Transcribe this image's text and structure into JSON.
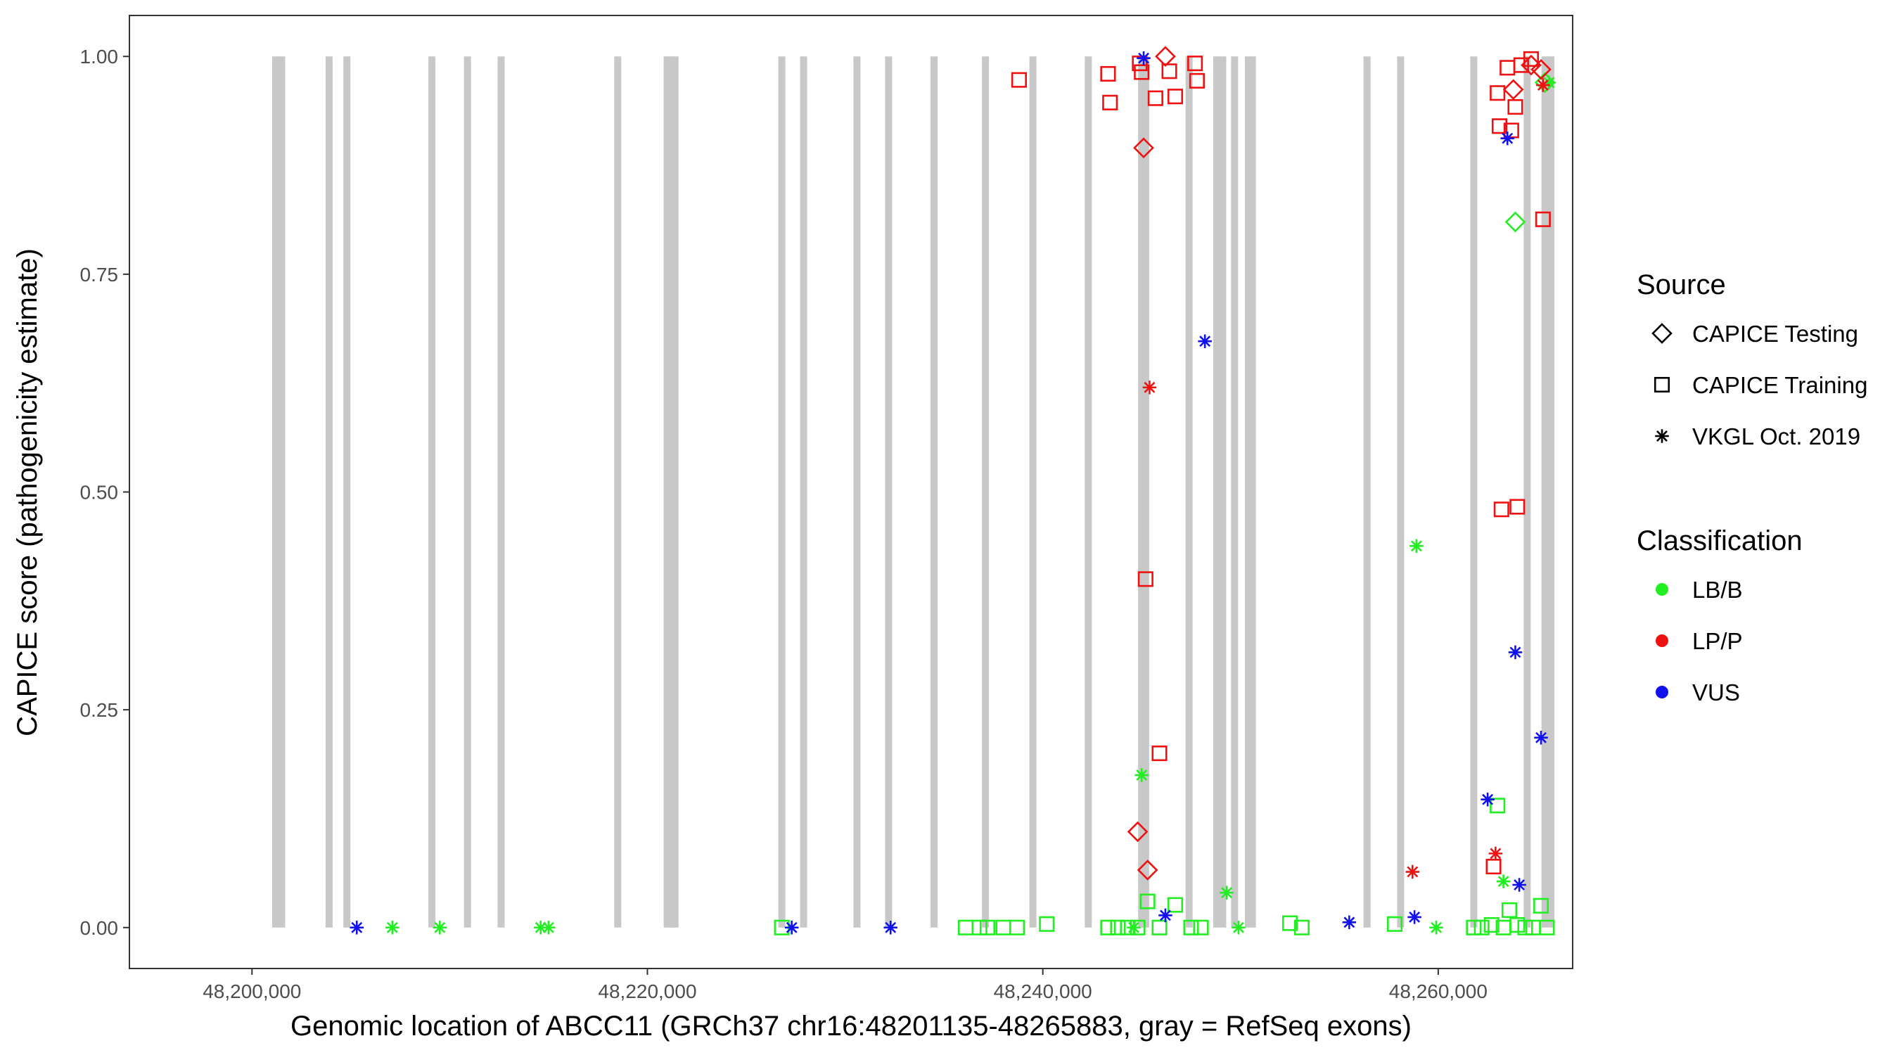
{
  "chart_data": {
    "type": "scatter",
    "title": "",
    "xlabel": "Genomic location of ABCC11 (GRCh37 chr16:48201135-48265883, gray = RefSeq exons)",
    "ylabel": "CAPICE score (pathogenicity estimate)",
    "xlim": [
      48193800,
      48266800
    ],
    "ylim": [
      -0.047,
      1.047
    ],
    "x_ticks": [
      48200000,
      48220000,
      48240000,
      48260000
    ],
    "x_tick_labels": [
      "48,200,000",
      "48,220,000",
      "48,240,000",
      "48,260,000"
    ],
    "y_ticks": [
      0,
      0.25,
      0.5,
      0.75,
      1.0
    ],
    "y_tick_labels": [
      "0.00",
      "0.25",
      "0.50",
      "0.75",
      "1.00"
    ],
    "grid": false,
    "legend_position": "right",
    "exons": [
      48201200,
      48201500,
      48203900,
      48204800,
      48209100,
      48210900,
      48212600,
      48218500,
      48221000,
      48221200,
      48221400,
      48226800,
      48227900,
      48230600,
      48232200,
      48234500,
      48237100,
      48239500,
      48242300,
      48245000,
      48245200,
      48247400,
      48248800,
      48249100,
      48249700,
      48250400,
      48250600,
      48256400,
      48258100,
      48261800,
      48264500,
      48265400,
      48265700
    ],
    "legends": {
      "source": {
        "title": "Source",
        "items": [
          {
            "label": "CAPICE Testing",
            "shape": "diamond"
          },
          {
            "label": "CAPICE Training",
            "shape": "square"
          },
          {
            "label": "VKGL Oct. 2019",
            "shape": "asterisk"
          }
        ]
      },
      "classification": {
        "title": "Classification",
        "items": [
          {
            "label": "LB/B",
            "color": "#22ee22"
          },
          {
            "label": "LP/P",
            "color": "#ee1111"
          },
          {
            "label": "VUS",
            "color": "#1111ee"
          }
        ]
      }
    },
    "series": [
      {
        "source": "CAPICE Testing",
        "classification": "LB/B",
        "points": [
          [
            48263900,
            0.81
          ],
          [
            48265400,
            0.97
          ]
        ]
      },
      {
        "source": "CAPICE Testing",
        "classification": "LP/P",
        "points": [
          [
            48244800,
            0.11
          ],
          [
            48245100,
            0.895
          ],
          [
            48245300,
            0.066
          ],
          [
            48246200,
            1.0
          ],
          [
            48263800,
            0.962
          ],
          [
            48264700,
            0.99
          ],
          [
            48265200,
            0.985
          ]
        ]
      },
      {
        "source": "CAPICE Training",
        "classification": "LB/B",
        "points": [
          [
            48226800,
            0.0
          ],
          [
            48236100,
            0.0
          ],
          [
            48236800,
            0.0
          ],
          [
            48237200,
            0.0
          ],
          [
            48238000,
            0.0
          ],
          [
            48238700,
            0.0
          ],
          [
            48240200,
            0.004
          ],
          [
            48243300,
            0.0
          ],
          [
            48243800,
            0.0
          ],
          [
            48244300,
            0.0
          ],
          [
            48244800,
            0.0
          ],
          [
            48245300,
            0.03
          ],
          [
            48245900,
            0.0
          ],
          [
            48246700,
            0.026
          ],
          [
            48247500,
            0.0
          ],
          [
            48248000,
            0.0
          ],
          [
            48252500,
            0.005
          ],
          [
            48253100,
            0.0
          ],
          [
            48257800,
            0.004
          ],
          [
            48261800,
            0.0
          ],
          [
            48262200,
            0.0
          ],
          [
            48262700,
            0.003
          ],
          [
            48263000,
            0.14
          ],
          [
            48263300,
            0.0
          ],
          [
            48263600,
            0.02
          ],
          [
            48264000,
            0.003
          ],
          [
            48264400,
            0.0
          ],
          [
            48264800,
            0.0
          ],
          [
            48265200,
            0.025
          ],
          [
            48265500,
            0.0
          ]
        ]
      },
      {
        "source": "CAPICE Training",
        "classification": "LP/P",
        "points": [
          [
            48238800,
            0.973
          ],
          [
            48243300,
            0.98
          ],
          [
            48243400,
            0.947
          ],
          [
            48244900,
            0.992
          ],
          [
            48245000,
            0.982
          ],
          [
            48245200,
            0.4
          ],
          [
            48245700,
            0.952
          ],
          [
            48245900,
            0.2
          ],
          [
            48246400,
            0.983
          ],
          [
            48246700,
            0.954
          ],
          [
            48247700,
            0.992
          ],
          [
            48247800,
            0.972
          ],
          [
            48262800,
            0.07
          ],
          [
            48263000,
            0.958
          ],
          [
            48263100,
            0.92
          ],
          [
            48263200,
            0.48
          ],
          [
            48263500,
            0.987
          ],
          [
            48263700,
            0.915
          ],
          [
            48263900,
            0.942
          ],
          [
            48264000,
            0.483
          ],
          [
            48264200,
            0.99
          ],
          [
            48264700,
            0.997
          ],
          [
            48265300,
            0.813
          ]
        ]
      },
      {
        "source": "VKGL Oct. 2019",
        "classification": "LB/B",
        "points": [
          [
            48207100,
            0.0
          ],
          [
            48209500,
            0.0
          ],
          [
            48214600,
            0.0
          ],
          [
            48215000,
            0.0
          ],
          [
            48244600,
            0.0
          ],
          [
            48245000,
            0.175
          ],
          [
            48249300,
            0.04
          ],
          [
            48249900,
            0.0
          ],
          [
            48258900,
            0.438
          ],
          [
            48259900,
            0.0
          ],
          [
            48263300,
            0.053
          ],
          [
            48265600,
            0.97
          ]
        ]
      },
      {
        "source": "VKGL Oct. 2019",
        "classification": "LP/P",
        "points": [
          [
            48245400,
            0.62
          ],
          [
            48258700,
            0.064
          ],
          [
            48262900,
            0.085
          ],
          [
            48265300,
            0.967
          ]
        ]
      },
      {
        "source": "VKGL Oct. 2019",
        "classification": "VUS",
        "points": [
          [
            48205300,
            0.0
          ],
          [
            48227300,
            0.0
          ],
          [
            48232300,
            0.0
          ],
          [
            48245100,
            0.998
          ],
          [
            48246200,
            0.014
          ],
          [
            48248200,
            0.673
          ],
          [
            48255500,
            0.006
          ],
          [
            48258800,
            0.012
          ],
          [
            48262500,
            0.147
          ],
          [
            48263500,
            0.906
          ],
          [
            48263900,
            0.316
          ],
          [
            48264100,
            0.049
          ],
          [
            48265200,
            0.218
          ]
        ]
      }
    ]
  }
}
